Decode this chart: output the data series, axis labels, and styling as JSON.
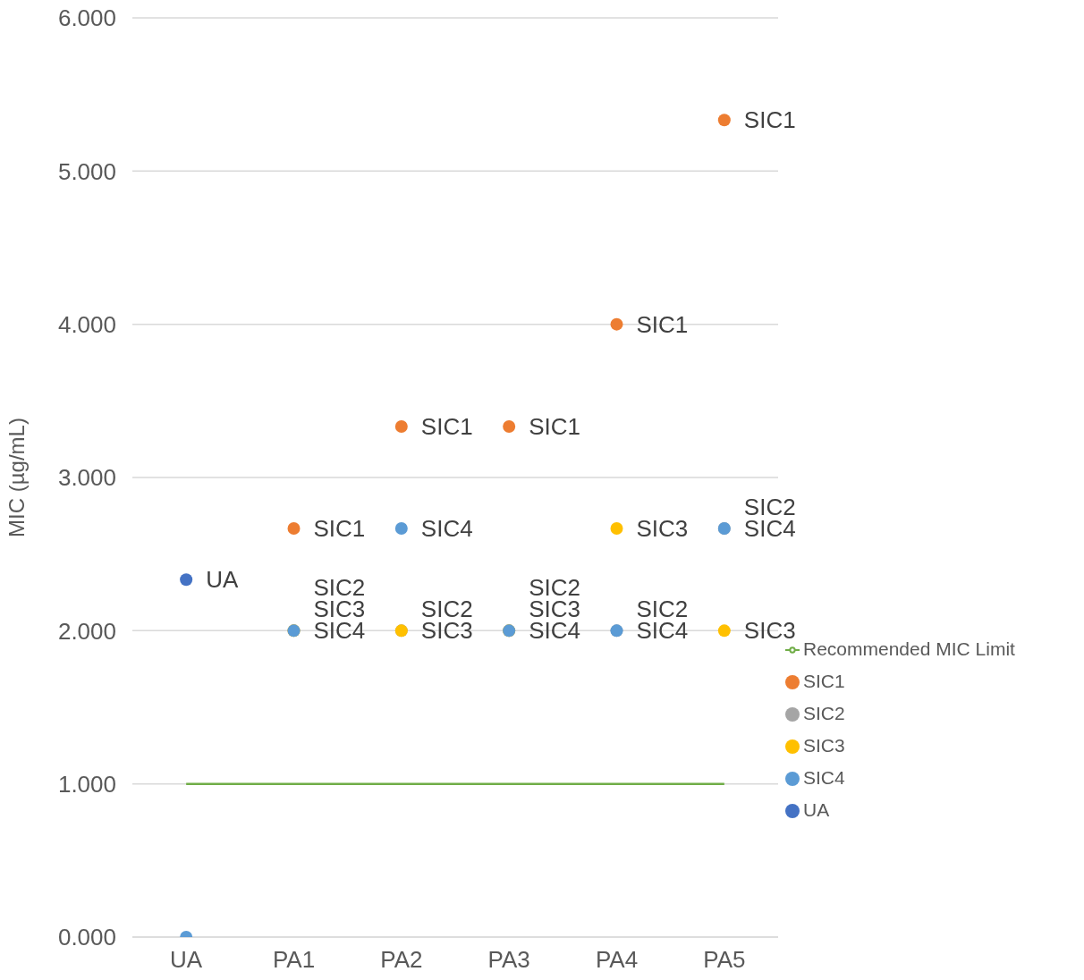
{
  "chart_data": {
    "type": "scatter",
    "ylabel": "MIC (µg/mL)",
    "categories": [
      "UA",
      "PA1",
      "PA2",
      "PA3",
      "PA4",
      "PA5"
    ],
    "ylim": [
      0,
      6
    ],
    "yticks": [
      {
        "value": 0,
        "label": "0.000"
      },
      {
        "value": 1,
        "label": "1.000"
      },
      {
        "value": 2,
        "label": "2.000"
      },
      {
        "value": 3,
        "label": "3.000"
      },
      {
        "value": 4,
        "label": "4.000"
      },
      {
        "value": 5,
        "label": "5.000"
      },
      {
        "value": 6,
        "label": "6.000"
      }
    ],
    "grid": "y",
    "legend": "right",
    "marker": "circle",
    "series": [
      {
        "name": "UA",
        "color": "#4472c4",
        "values": [
          2.333,
          null,
          null,
          null,
          null,
          null
        ],
        "value_labels": [
          "UA",
          null,
          null,
          null,
          null,
          null
        ]
      },
      {
        "name": "SIC1",
        "color": "#ed7d31",
        "values": [
          null,
          2.667,
          3.333,
          3.333,
          4.0,
          5.333
        ],
        "value_labels": [
          null,
          "SIC1",
          "SIC1",
          "SIC1",
          "SIC1",
          "SIC1"
        ]
      },
      {
        "name": "SIC2",
        "color": "#a5a5a5",
        "values": [
          null,
          2.0,
          2.0,
          2.0,
          2.0,
          2.667
        ],
        "value_labels": [
          null,
          "SIC2",
          "SIC2",
          "SIC2",
          "SIC2",
          "SIC2"
        ]
      },
      {
        "name": "SIC3",
        "color": "#ffc000",
        "values": [
          null,
          2.0,
          2.0,
          2.0,
          2.667,
          2.0
        ],
        "value_labels": [
          null,
          "SIC3",
          "SIC3",
          "SIC3",
          "SIC3",
          "SIC3"
        ]
      },
      {
        "name": "SIC4",
        "color": "#5b9bd5",
        "values": [
          0,
          2.0,
          2.667,
          2.0,
          2.0,
          2.667
        ],
        "value_labels": [
          null,
          "SIC4",
          "SIC4",
          "SIC4",
          "SIC4",
          "SIC4"
        ]
      },
      {
        "name": "Recommended MIC Limit",
        "type": "line",
        "marker": "none",
        "color": "#70ad47",
        "values": [
          1,
          1,
          1,
          1,
          1,
          1
        ]
      }
    ]
  }
}
